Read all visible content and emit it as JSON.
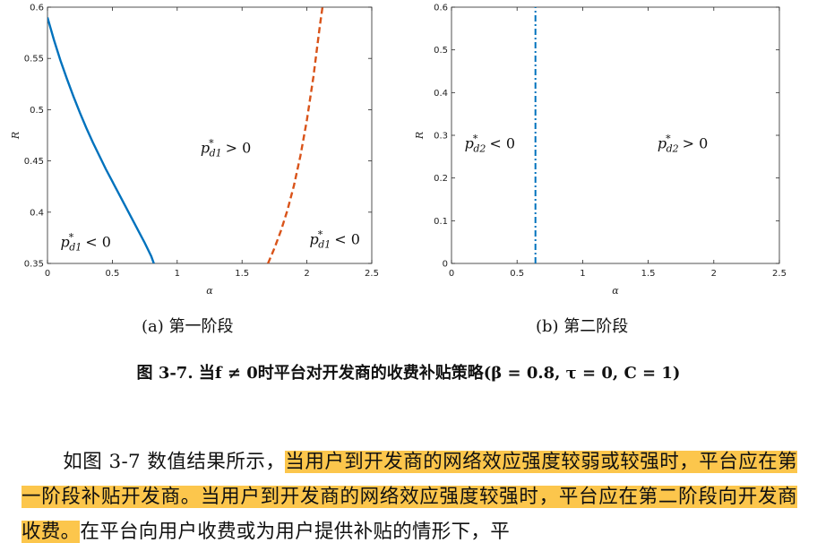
{
  "chart_data": [
    {
      "type": "line",
      "xlabel": "α",
      "ylabel": "R",
      "xlim": [
        0,
        2.5
      ],
      "ylim": [
        0.35,
        0.6
      ],
      "xticks": [
        "0",
        "0.5",
        "1",
        "1.5",
        "2",
        "2.5"
      ],
      "yticks": [
        "0.35",
        "0.4",
        "0.45",
        "0.5",
        "0.55",
        "0.6"
      ],
      "grid": false,
      "series": [
        {
          "style": "solid",
          "color": "#0072bd",
          "x": [
            0,
            0.05,
            0.1,
            0.15,
            0.2,
            0.25,
            0.3,
            0.35,
            0.4,
            0.45,
            0.5,
            0.55,
            0.6,
            0.65,
            0.7,
            0.75,
            0.8,
            0.82
          ],
          "y": [
            0.59,
            0.568,
            0.548,
            0.53,
            0.513,
            0.497,
            0.482,
            0.468,
            0.455,
            0.442,
            0.43,
            0.418,
            0.406,
            0.394,
            0.382,
            0.37,
            0.357,
            0.35
          ]
        },
        {
          "style": "dashed",
          "color": "#d95319",
          "x": [
            1.7,
            1.75,
            1.8,
            1.85,
            1.9,
            1.95,
            2.0,
            2.05,
            2.1,
            2.12
          ],
          "y": [
            0.35,
            0.365,
            0.382,
            0.402,
            0.426,
            0.455,
            0.49,
            0.532,
            0.582,
            0.6
          ]
        }
      ],
      "annotations": [
        {
          "text": "p*d1 > 0",
          "x": 1.18,
          "y": 0.458
        },
        {
          "text": "p*d1 < 0",
          "x": 0.1,
          "y": 0.366
        },
        {
          "text": "p*d1 < 0",
          "x": 2.02,
          "y": 0.369
        }
      ]
    },
    {
      "type": "line",
      "xlabel": "α",
      "ylabel": "R",
      "xlim": [
        0,
        2.5
      ],
      "ylim": [
        0,
        0.6
      ],
      "xticks": [
        "0",
        "0.5",
        "1",
        "1.5",
        "2",
        "2.5"
      ],
      "yticks": [
        "0",
        "0.1",
        "0.2",
        "0.3",
        "0.4",
        "0.5",
        "0.6"
      ],
      "grid": false,
      "series": [
        {
          "style": "dashdot",
          "color": "#0072bd",
          "x": [
            0.64,
            0.64
          ],
          "y": [
            0,
            0.6
          ]
        }
      ],
      "annotations": [
        {
          "text": "p*d2 < 0",
          "x": 0.1,
          "y": 0.27
        },
        {
          "text": "p*d2 > 0",
          "x": 1.57,
          "y": 0.27
        }
      ]
    }
  ],
  "subcaptions": {
    "a": "(a)  第一阶段",
    "b": "(b) 第二阶段"
  },
  "figure_caption": "图 3-7. 当f ≠ 0时平台对开发商的收费补贴策略(β = 0.8, τ = 0, C = 1)",
  "paragraph": {
    "part1": "如图 3-7 数值结果所示，",
    "highlight1": "当用户到开发商的网络效应强度较弱或较强时，平台应在第一阶段补贴开发商。当用户到开发商的网络效应强度较强时，平台应在第二阶段向开发商收费。",
    "part2": "在平台向用户收费或为用户提供补贴的情形下，平"
  },
  "colors": {
    "highlight": "#fcc64c",
    "blue": "#0072bd",
    "orange": "#d95319"
  }
}
